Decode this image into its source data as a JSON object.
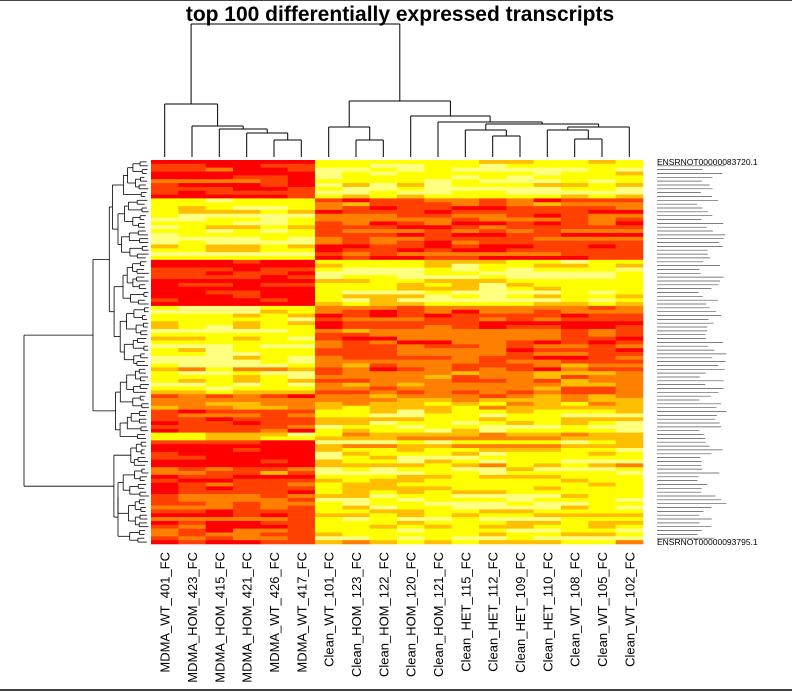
{
  "chart_data": {
    "type": "heatmap",
    "title": "top 100 differentially expressed transcripts",
    "columns": [
      "MDMA_WT_401_FC",
      "MDMA_HOM_423_FC",
      "MDMA_HOM_415_FC",
      "MDMA_HOM_421_FC",
      "MDMA_WT_426_FC",
      "MDMA_WT_417_FC",
      "Clean_WT_101_FC",
      "Clean_HOM_123_FC",
      "Clean_HOM_122_FC",
      "Clean_HOM_120_FC",
      "Clean_HOM_121_FC",
      "Clean_HET_115_FC",
      "Clean_HET_112_FC",
      "Clean_HET_109_FC",
      "Clean_HET_110_FC",
      "Clean_WT_108_FC",
      "Clean_WT_105_FC",
      "Clean_WT_102_FC"
    ],
    "row_labels_visible": [
      "ENSRNOT00000083720.1",
      "ENSRNOT00000093795.1"
    ],
    "colormap": [
      "#ff0000",
      "#ff4000",
      "#ff8000",
      "#ffbf00",
      "#ffff00",
      "#ffff80"
    ],
    "blocks": [
      {
        "rows": 10,
        "group1": 0.12,
        "group2": 0.78
      },
      {
        "rows": 16,
        "group1": 0.82,
        "group2": 0.28
      },
      {
        "rows": 12,
        "group1": 0.12,
        "group2": 0.78
      },
      {
        "rows": 16,
        "group1": 0.82,
        "group2": 0.32
      },
      {
        "rows": 7,
        "group1": 0.68,
        "group2": 0.38
      },
      {
        "rows": 4,
        "group1": 0.42,
        "group2": 0.55
      },
      {
        "rows": 6,
        "group1": 0.18,
        "group2": 0.72
      },
      {
        "rows": 2,
        "group1": 0.78,
        "group2": 0.58
      },
      {
        "rows": 7,
        "group1": 0.12,
        "group2": 0.68
      },
      {
        "rows": 20,
        "group1": 0.25,
        "group2": 0.72
      }
    ]
  }
}
